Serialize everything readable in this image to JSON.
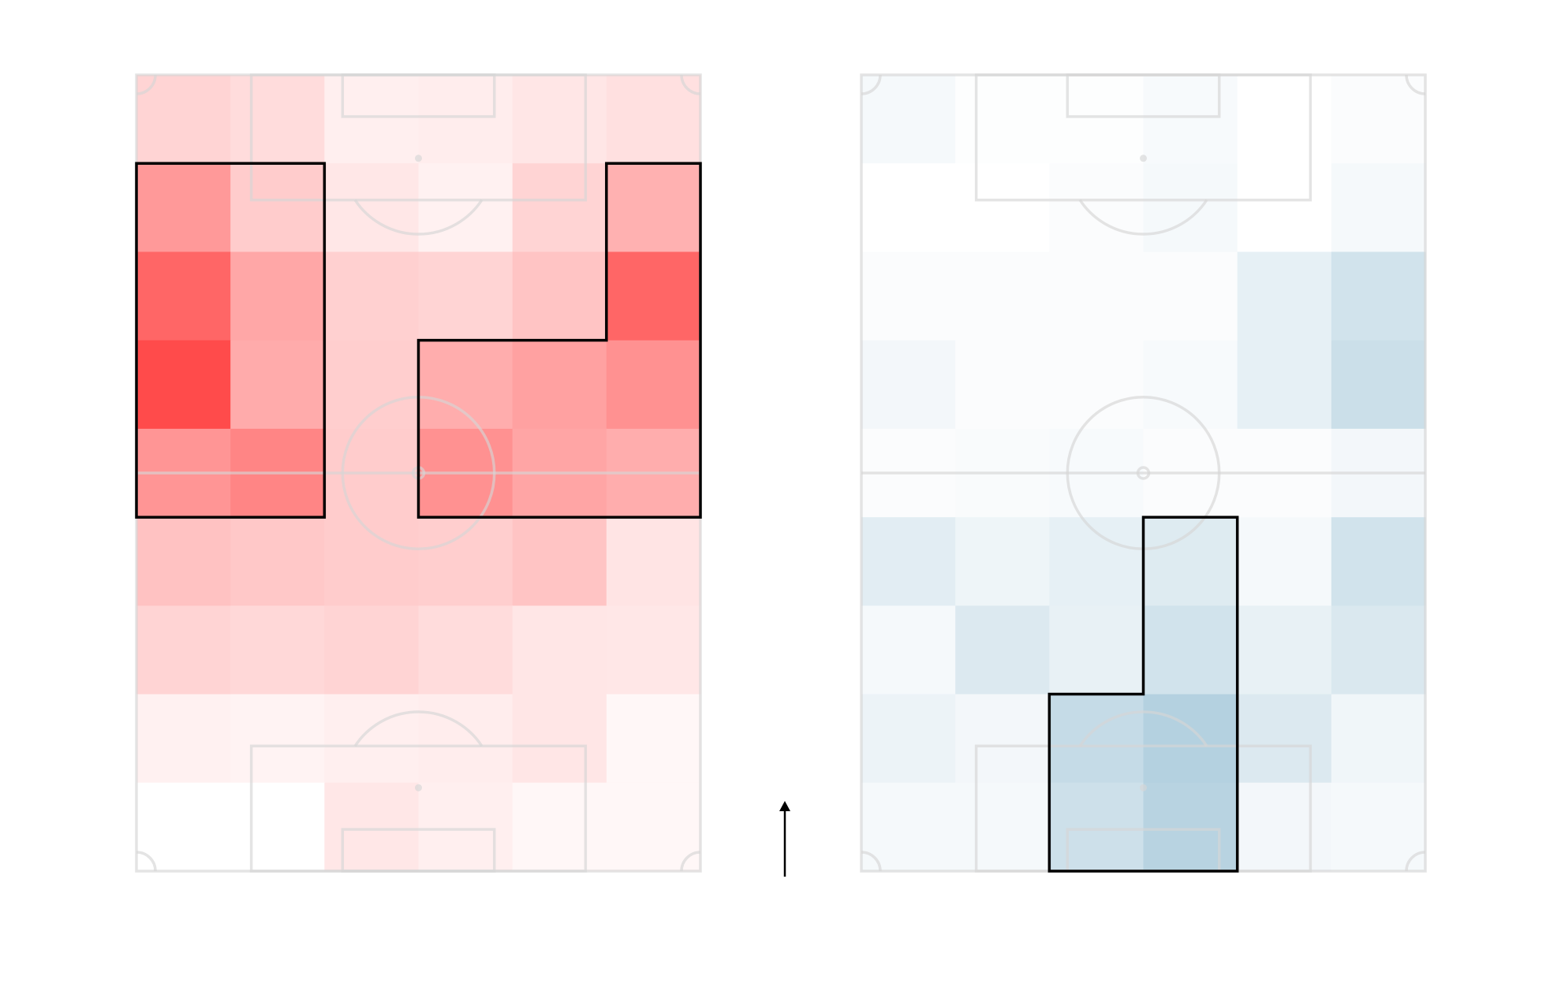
{
  "chart_data": [
    {
      "type": "heatmap",
      "panel": "left",
      "title": "",
      "xlabel": "",
      "ylabel": "",
      "grid": {
        "cols": 6,
        "rows": 9
      },
      "colormap": {
        "low": "#ffffff",
        "high": "#ff3b3b"
      },
      "values": [
        [
          0.22,
          0.18,
          0.08,
          0.09,
          0.13,
          0.16
        ],
        [
          0.52,
          0.26,
          0.12,
          0.07,
          0.22,
          0.4
        ],
        [
          0.78,
          0.45,
          0.24,
          0.22,
          0.3,
          0.78
        ],
        [
          0.92,
          0.43,
          0.25,
          0.42,
          0.48,
          0.56
        ],
        [
          0.54,
          0.62,
          0.26,
          0.56,
          0.46,
          0.42
        ],
        [
          0.31,
          0.28,
          0.26,
          0.25,
          0.3,
          0.14
        ],
        [
          0.22,
          0.2,
          0.22,
          0.18,
          0.13,
          0.12
        ],
        [
          0.07,
          0.06,
          0.08,
          0.09,
          0.13,
          0.04
        ],
        [
          0.0,
          0.0,
          0.12,
          0.08,
          0.04,
          0.04
        ]
      ],
      "highlight_zones": [
        [
          [
            0,
            1
          ],
          [
            1,
            1
          ],
          [
            0,
            2
          ],
          [
            1,
            2
          ],
          [
            0,
            3
          ],
          [
            1,
            3
          ],
          [
            0,
            4
          ],
          [
            1,
            4
          ]
        ],
        [
          [
            5,
            1
          ],
          [
            5,
            2
          ],
          [
            3,
            3
          ],
          [
            4,
            3
          ],
          [
            5,
            3
          ],
          [
            3,
            4
          ],
          [
            4,
            4
          ],
          [
            5,
            4
          ]
        ]
      ]
    },
    {
      "type": "heatmap",
      "panel": "right",
      "title": "",
      "xlabel": "",
      "ylabel": "",
      "grid": {
        "cols": 6,
        "rows": 9
      },
      "colormap": {
        "low": "#ffffff",
        "high": "#2f7fa8"
      },
      "values": [
        [
          0.05,
          0.01,
          0.01,
          0.04,
          0.0,
          0.02
        ],
        [
          0.0,
          0.0,
          0.02,
          0.05,
          0.0,
          0.05
        ],
        [
          0.02,
          0.02,
          0.02,
          0.02,
          0.12,
          0.22
        ],
        [
          0.06,
          0.02,
          0.02,
          0.04,
          0.12,
          0.25
        ],
        [
          0.02,
          0.03,
          0.04,
          0.02,
          0.02,
          0.06
        ],
        [
          0.14,
          0.08,
          0.12,
          0.16,
          0.05,
          0.22
        ],
        [
          0.05,
          0.17,
          0.11,
          0.22,
          0.11,
          0.18
        ],
        [
          0.09,
          0.06,
          0.28,
          0.36,
          0.17,
          0.07
        ],
        [
          0.05,
          0.05,
          0.24,
          0.34,
          0.06,
          0.05
        ]
      ],
      "highlight_zones": [
        [
          [
            3,
            5
          ],
          [
            3,
            6
          ],
          [
            2,
            7
          ],
          [
            3,
            7
          ],
          [
            2,
            8
          ],
          [
            3,
            8
          ]
        ]
      ]
    }
  ],
  "attack_direction": {
    "direction": "up",
    "icon": "arrow-up-icon"
  },
  "colors": {
    "background": "#ffffff",
    "pitch_lines": "#d6d6d6",
    "zone_outline": "#000000",
    "arrow": "#000000"
  }
}
